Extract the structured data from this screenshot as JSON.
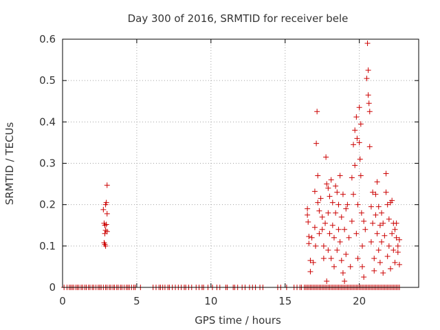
{
  "chart_data": {
    "type": "scatter",
    "title": "Day 300 of 2016, SRMTID for receiver bele",
    "xlabel": "GPS time / hours",
    "ylabel": "SRMTID / TECUs",
    "xlim": [
      0,
      24
    ],
    "ylim": [
      0,
      0.6
    ],
    "x_ticks": [
      0,
      5,
      10,
      15,
      20
    ],
    "x_tick_labels": [
      "0",
      "5",
      "10",
      "15",
      "20"
    ],
    "y_ticks": [
      0,
      0.1,
      0.2,
      0.3,
      0.4,
      0.5,
      0.6
    ],
    "y_tick_labels": [
      "0",
      "0.1",
      "0.2",
      "0.3",
      "0.4",
      "0.5",
      "0.6"
    ],
    "grid": true,
    "marker": "+",
    "marker_color": "#cc0000",
    "series": [
      {
        "name": "SRMTID",
        "points": [
          [
            2.75,
            0.188
          ],
          [
            2.8,
            0.155
          ],
          [
            2.85,
            0.15
          ],
          [
            2.9,
            0.2
          ],
          [
            2.95,
            0.205
          ],
          [
            3.0,
            0.247
          ],
          [
            3.0,
            0.178
          ],
          [
            2.95,
            0.152
          ],
          [
            2.9,
            0.138
          ],
          [
            3.0,
            0.135
          ],
          [
            2.85,
            0.13
          ],
          [
            2.8,
            0.108
          ],
          [
            2.85,
            0.104
          ],
          [
            2.9,
            0.1
          ],
          [
            16.5,
            0.19
          ],
          [
            16.5,
            0.175
          ],
          [
            16.55,
            0.158
          ],
          [
            16.6,
            0.123
          ],
          [
            16.6,
            0.106
          ],
          [
            16.7,
            0.065
          ],
          [
            16.7,
            0.038
          ],
          [
            16.8,
            0.12
          ],
          [
            16.9,
            0.06
          ],
          [
            17.0,
            0.232
          ],
          [
            17.0,
            0.145
          ],
          [
            17.05,
            0.1
          ],
          [
            17.1,
            0.348
          ],
          [
            17.15,
            0.425
          ],
          [
            17.2,
            0.27
          ],
          [
            17.2,
            0.205
          ],
          [
            17.3,
            0.185
          ],
          [
            17.3,
            0.13
          ],
          [
            17.4,
            0.215
          ],
          [
            17.5,
            0.17
          ],
          [
            17.5,
            0.14
          ],
          [
            17.6,
            0.1
          ],
          [
            17.6,
            0.07
          ],
          [
            17.7,
            0.155
          ],
          [
            17.75,
            0.315
          ],
          [
            17.8,
            0.25
          ],
          [
            17.8,
            0.015
          ],
          [
            17.9,
            0.24
          ],
          [
            17.9,
            0.18
          ],
          [
            17.9,
            0.09
          ],
          [
            18.0,
            0.22
          ],
          [
            18.0,
            0.13
          ],
          [
            18.1,
            0.26
          ],
          [
            18.1,
            0.07
          ],
          [
            18.2,
            0.205
          ],
          [
            18.2,
            0.15
          ],
          [
            18.3,
            0.12
          ],
          [
            18.3,
            0.05
          ],
          [
            18.4,
            0.245
          ],
          [
            18.4,
            0.18
          ],
          [
            18.5,
            0.23
          ],
          [
            18.5,
            0.09
          ],
          [
            18.6,
            0.2
          ],
          [
            18.6,
            0.14
          ],
          [
            18.7,
            0.27
          ],
          [
            18.7,
            0.11
          ],
          [
            18.8,
            0.17
          ],
          [
            18.8,
            0.065
          ],
          [
            18.9,
            0.225
          ],
          [
            18.9,
            0.035
          ],
          [
            19.0,
            0.14
          ],
          [
            19.0,
            0.015
          ],
          [
            19.1,
            0.19
          ],
          [
            19.1,
            0.08
          ],
          [
            19.2,
            0.2
          ],
          [
            19.3,
            0.12
          ],
          [
            19.4,
            0.05
          ],
          [
            19.5,
            0.265
          ],
          [
            19.5,
            0.16
          ],
          [
            19.6,
            0.345
          ],
          [
            19.6,
            0.225
          ],
          [
            19.7,
            0.38
          ],
          [
            19.7,
            0.295
          ],
          [
            19.8,
            0.412
          ],
          [
            19.8,
            0.13
          ],
          [
            19.85,
            0.36
          ],
          [
            19.9,
            0.2
          ],
          [
            19.9,
            0.07
          ],
          [
            20.0,
            0.435
          ],
          [
            20.0,
            0.35
          ],
          [
            20.05,
            0.31
          ],
          [
            20.1,
            0.395
          ],
          [
            20.1,
            0.27
          ],
          [
            20.15,
            0.18
          ],
          [
            20.2,
            0.1
          ],
          [
            20.2,
            0.05
          ],
          [
            20.3,
            0.16
          ],
          [
            20.3,
            0.025
          ],
          [
            20.4,
            0.14
          ],
          [
            20.5,
            0.505
          ],
          [
            20.55,
            0.59
          ],
          [
            20.6,
            0.525
          ],
          [
            20.6,
            0.465
          ],
          [
            20.65,
            0.445
          ],
          [
            20.7,
            0.425
          ],
          [
            20.7,
            0.34
          ],
          [
            20.8,
            0.195
          ],
          [
            20.8,
            0.11
          ],
          [
            20.9,
            0.23
          ],
          [
            20.9,
            0.155
          ],
          [
            21.0,
            0.07
          ],
          [
            21.0,
            0.04
          ],
          [
            21.1,
            0.225
          ],
          [
            21.1,
            0.175
          ],
          [
            21.2,
            0.255
          ],
          [
            21.2,
            0.13
          ],
          [
            21.3,
            0.195
          ],
          [
            21.3,
            0.09
          ],
          [
            21.4,
            0.15
          ],
          [
            21.4,
            0.06
          ],
          [
            21.5,
            0.18
          ],
          [
            21.5,
            0.11
          ],
          [
            21.6,
            0.155
          ],
          [
            21.6,
            0.035
          ],
          [
            21.7,
            0.125
          ],
          [
            21.8,
            0.275
          ],
          [
            21.8,
            0.23
          ],
          [
            21.9,
            0.2
          ],
          [
            21.9,
            0.075
          ],
          [
            22.0,
            0.165
          ],
          [
            22.0,
            0.1
          ],
          [
            22.1,
            0.205
          ],
          [
            22.1,
            0.045
          ],
          [
            22.2,
            0.21
          ],
          [
            22.2,
            0.13
          ],
          [
            22.3,
            0.155
          ],
          [
            22.3,
            0.09
          ],
          [
            22.4,
            0.14
          ],
          [
            22.4,
            0.06
          ],
          [
            22.5,
            0.12
          ],
          [
            22.5,
            0.155
          ],
          [
            22.6,
            0.1
          ],
          [
            22.6,
            0.085
          ],
          [
            22.7,
            0.115
          ],
          [
            22.7,
            0.055
          ]
        ],
        "zero_x": [
          0.1,
          0.3,
          0.45,
          0.55,
          0.65,
          0.75,
          0.9,
          1.0,
          1.1,
          1.25,
          1.35,
          1.5,
          1.6,
          1.75,
          1.85,
          2.0,
          2.1,
          2.25,
          2.4,
          2.5,
          2.6,
          2.75,
          2.9,
          3.0,
          3.15,
          3.25,
          3.4,
          3.5,
          3.65,
          3.75,
          3.9,
          4.0,
          4.15,
          4.3,
          4.4,
          4.5,
          4.65,
          4.8,
          4.9,
          5.25,
          6.1,
          6.3,
          6.5,
          6.6,
          6.75,
          6.9,
          7.1,
          7.2,
          7.4,
          7.6,
          7.8,
          8.0,
          8.2,
          8.3,
          8.5,
          8.7,
          9.0,
          9.2,
          9.4,
          9.5,
          9.8,
          10.1,
          10.4,
          10.6,
          11.0,
          11.1,
          11.5,
          11.6,
          11.8,
          12.1,
          12.3,
          12.6,
          12.8,
          13.0,
          13.3,
          13.5,
          14.5,
          14.7,
          15.1,
          15.6,
          15.8,
          16.0,
          16.1,
          16.3,
          16.4,
          16.5,
          16.6,
          16.7,
          16.8,
          16.9,
          17.0,
          17.1,
          17.2,
          17.3,
          17.4,
          17.5,
          17.6,
          17.7,
          17.8,
          17.9,
          18.0,
          18.1,
          18.2,
          18.3,
          18.4,
          18.5,
          18.6,
          18.7,
          18.8,
          18.9,
          19.0,
          19.1,
          19.2,
          19.3,
          19.4,
          19.5,
          19.6,
          19.7,
          19.8,
          19.9,
          20.0,
          20.1,
          20.2,
          20.3,
          20.4,
          20.5,
          20.6,
          20.7,
          20.8,
          20.9,
          21.0,
          21.1,
          21.2,
          21.3,
          21.4,
          21.5,
          21.6,
          21.7,
          21.8,
          21.9,
          22.0,
          22.1,
          22.2,
          22.3,
          22.4,
          22.5,
          22.6,
          22.7
        ]
      }
    ]
  }
}
